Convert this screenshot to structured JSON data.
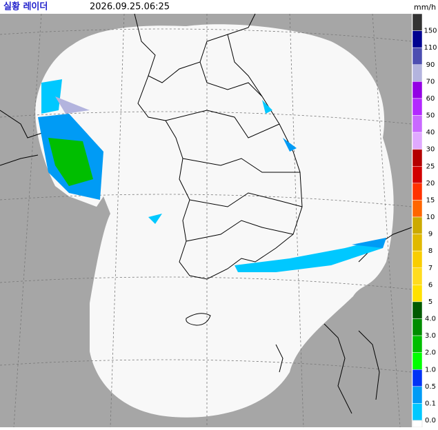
{
  "header": {
    "title": "실황 레이더",
    "timestamp": "2026.09.25.06:25",
    "unit": "mm/h"
  },
  "legend": [
    {
      "label": "150",
      "color": "#333333"
    },
    {
      "label": "110",
      "color": "#000390"
    },
    {
      "label": "90",
      "color": "#4c4eb1"
    },
    {
      "label": "70",
      "color": "#b3b4de"
    },
    {
      "label": "60",
      "color": "#9300e4"
    },
    {
      "label": "50",
      "color": "#b329ff"
    },
    {
      "label": "40",
      "color": "#c969ff"
    },
    {
      "label": "30",
      "color": "#e0a9ff"
    },
    {
      "label": "25",
      "color": "#b40000"
    },
    {
      "label": "20",
      "color": "#d20000"
    },
    {
      "label": "15",
      "color": "#ff3200"
    },
    {
      "label": "10",
      "color": "#ff6600"
    },
    {
      "label": "9",
      "color": "#ccaa00"
    },
    {
      "label": "8",
      "color": "#e0b900"
    },
    {
      "label": "7",
      "color": "#f9cd00"
    },
    {
      "label": "6",
      "color": "#ffdc1f"
    },
    {
      "label": "5",
      "color": "#ffe100"
    },
    {
      "label": "4.0",
      "color": "#005a00"
    },
    {
      "label": "3.0",
      "color": "#008c00"
    },
    {
      "label": "2.0",
      "color": "#00be00"
    },
    {
      "label": "1.0",
      "color": "#00ff00"
    },
    {
      "label": "0.5",
      "color": "#0033f5"
    },
    {
      "label": "0.1",
      "color": "#009bf5"
    },
    {
      "label": "0.0",
      "color": "#00c8ff"
    }
  ]
}
